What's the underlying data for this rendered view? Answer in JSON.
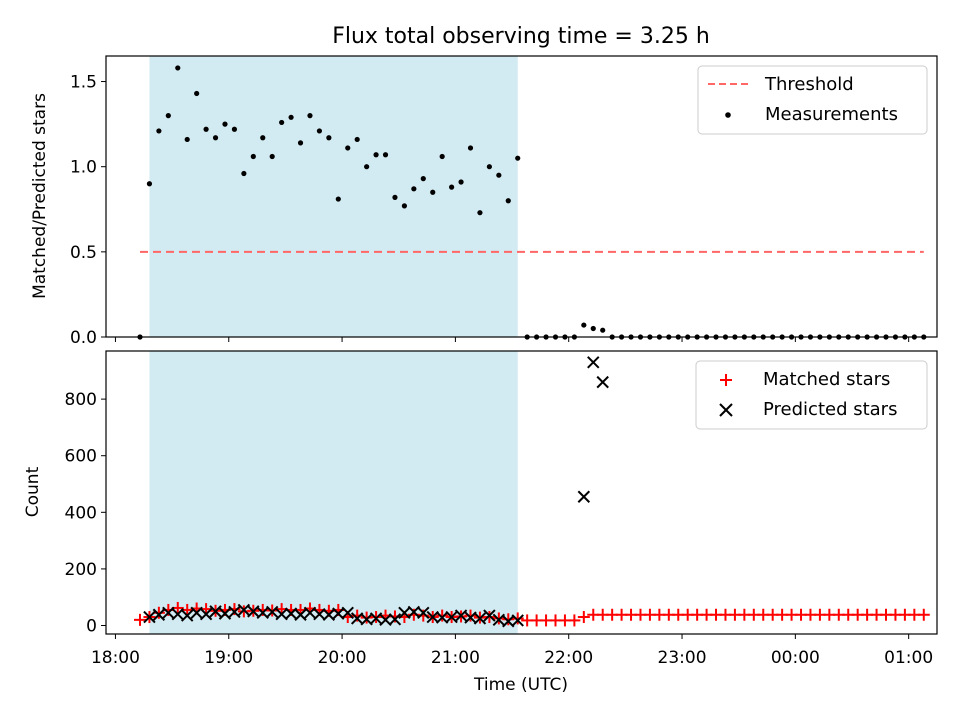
{
  "chart_data": [
    {
      "type": "scatter",
      "title": "Flux total observing time = 3.25 h",
      "xlabel": "",
      "ylabel": "Matched/Predicted stars",
      "ylim": [
        0,
        1.65
      ],
      "yticks": [
        "0.0",
        "0.5",
        "1.0",
        "1.5"
      ],
      "x_unit": "minutes after 18:00 UTC",
      "xlim": [
        -5,
        435
      ],
      "shaded_interval": [
        18,
        213
      ],
      "shaded_color": "#add8e6",
      "legend": {
        "position": "top-right",
        "entries": [
          "Threshold",
          "Measurements"
        ]
      },
      "series": [
        {
          "name": "Threshold",
          "kind": "dashed-line",
          "color": "#ff6666",
          "x": [
            13,
            428
          ],
          "y": [
            0.5,
            0.5
          ]
        },
        {
          "name": "Measurements",
          "kind": "points",
          "color": "#000000",
          "x": [
            13,
            18,
            23,
            28,
            33,
            38,
            43,
            48,
            53,
            58,
            63,
            68,
            73,
            78,
            83,
            88,
            93,
            98,
            103,
            108,
            113,
            118,
            123,
            128,
            133,
            138,
            143,
            148,
            153,
            158,
            163,
            168,
            173,
            178,
            183,
            188,
            193,
            198,
            203,
            208,
            213,
            218,
            223,
            228,
            233,
            238,
            243,
            248,
            253,
            258,
            263,
            268,
            273,
            278,
            283,
            288,
            293,
            298,
            303,
            308,
            313,
            318,
            323,
            328,
            333,
            338,
            343,
            348,
            353,
            358,
            363,
            368,
            373,
            378,
            383,
            388,
            393,
            398,
            403,
            408,
            413,
            418,
            423,
            428
          ],
          "y": [
            0.0,
            0.9,
            1.21,
            1.3,
            1.58,
            1.16,
            1.43,
            1.22,
            1.17,
            1.25,
            1.22,
            0.96,
            1.06,
            1.17,
            1.06,
            1.26,
            1.29,
            1.14,
            1.3,
            1.21,
            1.17,
            0.81,
            1.11,
            1.16,
            1.0,
            1.07,
            1.07,
            0.82,
            0.77,
            0.87,
            0.93,
            0.85,
            1.06,
            0.88,
            0.91,
            1.11,
            0.73,
            1.0,
            0.95,
            0.8,
            1.05,
            0.0,
            0.0,
            0.0,
            0.0,
            0.0,
            0.0,
            0.07,
            0.05,
            0.04,
            0.0,
            0.0,
            0.0,
            0.0,
            0.0,
            0.0,
            0.0,
            0.0,
            0.0,
            0.0,
            0.0,
            0.0,
            0.0,
            0.0,
            0.0,
            0.0,
            0.0,
            0.0,
            0.0,
            0.0,
            0.0,
            0.0,
            0.0,
            0.0,
            0.0,
            0.0,
            0.0,
            0.0,
            0.0,
            0.0,
            0.0,
            0.0,
            0.0,
            0.0
          ]
        }
      ]
    },
    {
      "type": "scatter",
      "title": "",
      "xlabel": "Time (UTC)",
      "ylabel": "Count",
      "ylim": [
        -30,
        970
      ],
      "yticks": [
        "0",
        "200",
        "400",
        "600",
        "800"
      ],
      "x_unit": "minutes after 18:00 UTC",
      "xlim": [
        -5,
        435
      ],
      "xticks": [
        "18:00",
        "19:00",
        "20:00",
        "21:00",
        "22:00",
        "23:00",
        "00:00",
        "01:00"
      ],
      "shaded_interval": [
        18,
        213
      ],
      "shaded_color": "#add8e6",
      "legend": {
        "position": "top-right",
        "entries": [
          "Matched stars",
          "Predicted stars"
        ]
      },
      "series": [
        {
          "name": "Matched stars",
          "marker": "plus",
          "color": "#ff0000",
          "x": [
            13,
            18,
            23,
            28,
            33,
            38,
            43,
            48,
            53,
            58,
            63,
            68,
            73,
            78,
            83,
            88,
            93,
            98,
            103,
            108,
            113,
            118,
            123,
            128,
            133,
            138,
            143,
            148,
            153,
            158,
            163,
            168,
            173,
            178,
            183,
            188,
            193,
            198,
            203,
            208,
            213,
            218,
            223,
            228,
            233,
            238,
            243,
            248,
            253,
            258,
            263,
            268,
            273,
            278,
            283,
            288,
            293,
            298,
            303,
            308,
            313,
            318,
            323,
            328,
            333,
            338,
            343,
            348,
            353,
            358,
            363,
            368,
            373,
            378,
            383,
            388,
            393,
            398,
            403,
            408,
            413,
            418,
            423,
            428
          ],
          "y": [
            20,
            30,
            45,
            55,
            62,
            55,
            60,
            58,
            52,
            55,
            58,
            50,
            52,
            55,
            53,
            58,
            55,
            55,
            60,
            55,
            52,
            55,
            30,
            35,
            28,
            30,
            35,
            32,
            30,
            38,
            35,
            30,
            35,
            30,
            32,
            35,
            28,
            30,
            25,
            22,
            25,
            18,
            18,
            18,
            18,
            18,
            18,
            30,
            38,
            38,
            38,
            38,
            38,
            38,
            38,
            38,
            38,
            38,
            38,
            38,
            38,
            38,
            38,
            38,
            38,
            38,
            38,
            38,
            38,
            38,
            38,
            38,
            38,
            38,
            38,
            38,
            38,
            38,
            38,
            38,
            38,
            38,
            38,
            38
          ]
        },
        {
          "name": "Predicted stars",
          "marker": "x",
          "color": "#000000",
          "x": [
            18,
            23,
            28,
            33,
            38,
            43,
            48,
            53,
            58,
            63,
            68,
            73,
            78,
            83,
            88,
            93,
            98,
            103,
            108,
            113,
            118,
            123,
            128,
            133,
            138,
            143,
            148,
            153,
            158,
            163,
            168,
            173,
            178,
            183,
            188,
            193,
            198,
            203,
            208,
            213,
            248,
            253,
            258
          ],
          "y": [
            30,
            38,
            45,
            40,
            35,
            45,
            40,
            50,
            42,
            48,
            55,
            50,
            45,
            48,
            40,
            42,
            38,
            45,
            40,
            38,
            42,
            45,
            25,
            22,
            25,
            20,
            22,
            45,
            48,
            45,
            30,
            28,
            30,
            35,
            28,
            25,
            35,
            20,
            15,
            18,
            455,
            930,
            860
          ]
        }
      ]
    }
  ]
}
